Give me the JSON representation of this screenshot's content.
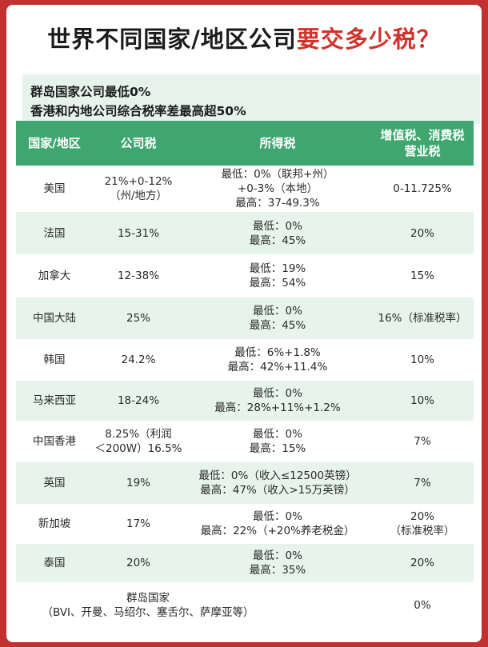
{
  "title": {
    "part1": "世界不同国家/地区公司",
    "part2": "要交多少税？"
  },
  "subtitle": {
    "line1": "群岛国家公司最低0%",
    "line2": "香港和内地公司综合税率差最高超50%"
  },
  "headers": {
    "region": "国家/地区",
    "corporate": "公司税",
    "income": "所得税",
    "vat_line1": "增值税、消费税",
    "vat_line2": "营业税"
  },
  "rows": [
    {
      "region": [
        "美国"
      ],
      "corporate": [
        "21%+0-12%",
        "（州/地方）"
      ],
      "income": [
        "最低：0%（联邦+州）",
        "+0-3%（本地）",
        "最高：37-49.3%"
      ],
      "vat": [
        "0-11.725%"
      ]
    },
    {
      "region": [
        "法国"
      ],
      "corporate": [
        "15-31%"
      ],
      "income": [
        "最低：0%",
        "最高：45%"
      ],
      "vat": [
        "20%"
      ]
    },
    {
      "region": [
        "加拿大"
      ],
      "corporate": [
        "12-38%"
      ],
      "income": [
        "最低：19%",
        "最高：54%"
      ],
      "vat": [
        "15%"
      ]
    },
    {
      "region": [
        "中国大陆"
      ],
      "corporate": [
        "25%"
      ],
      "income": [
        "最低：0%",
        "最高：45%"
      ],
      "vat": [
        "16%（标准税率）"
      ]
    },
    {
      "region": [
        "韩国"
      ],
      "corporate": [
        "24.2%"
      ],
      "income": [
        "最低：6%+1.8%",
        "最高：42%+11.4%"
      ],
      "vat": [
        "10%"
      ]
    },
    {
      "region": [
        "马来西亚"
      ],
      "corporate": [
        "18-24%"
      ],
      "income": [
        "最低：0%",
        "最高：28%+11%+1.2%"
      ],
      "vat": [
        "10%"
      ]
    },
    {
      "region": [
        "中国香港"
      ],
      "corporate": [
        "8.25%（利润",
        "＜200W）16.5%"
      ],
      "income": [
        "最低：0%",
        "最高：15%"
      ],
      "vat": [
        "7%"
      ]
    },
    {
      "region": [
        "英国"
      ],
      "corporate": [
        "19%"
      ],
      "income": [
        "最低：0%（收入≤12500英镑）",
        "最高：47%（收入>15万英镑）"
      ],
      "vat": [
        "7%"
      ]
    },
    {
      "region": [
        "新加坡"
      ],
      "corporate": [
        "17%"
      ],
      "income": [
        "最低：0%",
        "最高：22%（+20%养老税金）"
      ],
      "vat": [
        "20%",
        "（标准税率）"
      ]
    },
    {
      "region": [
        "泰国"
      ],
      "corporate": [
        "20%"
      ],
      "income": [
        "最低：0%",
        "最高：35%"
      ],
      "vat": [
        "20%"
      ]
    },
    {
      "region": [
        "群岛国家",
        "（BVI、开曼、马绍尔、塞舌尔、萨摩亚等）"
      ],
      "corporate": [],
      "income": [],
      "vat": [
        "0%"
      ]
    }
  ]
}
